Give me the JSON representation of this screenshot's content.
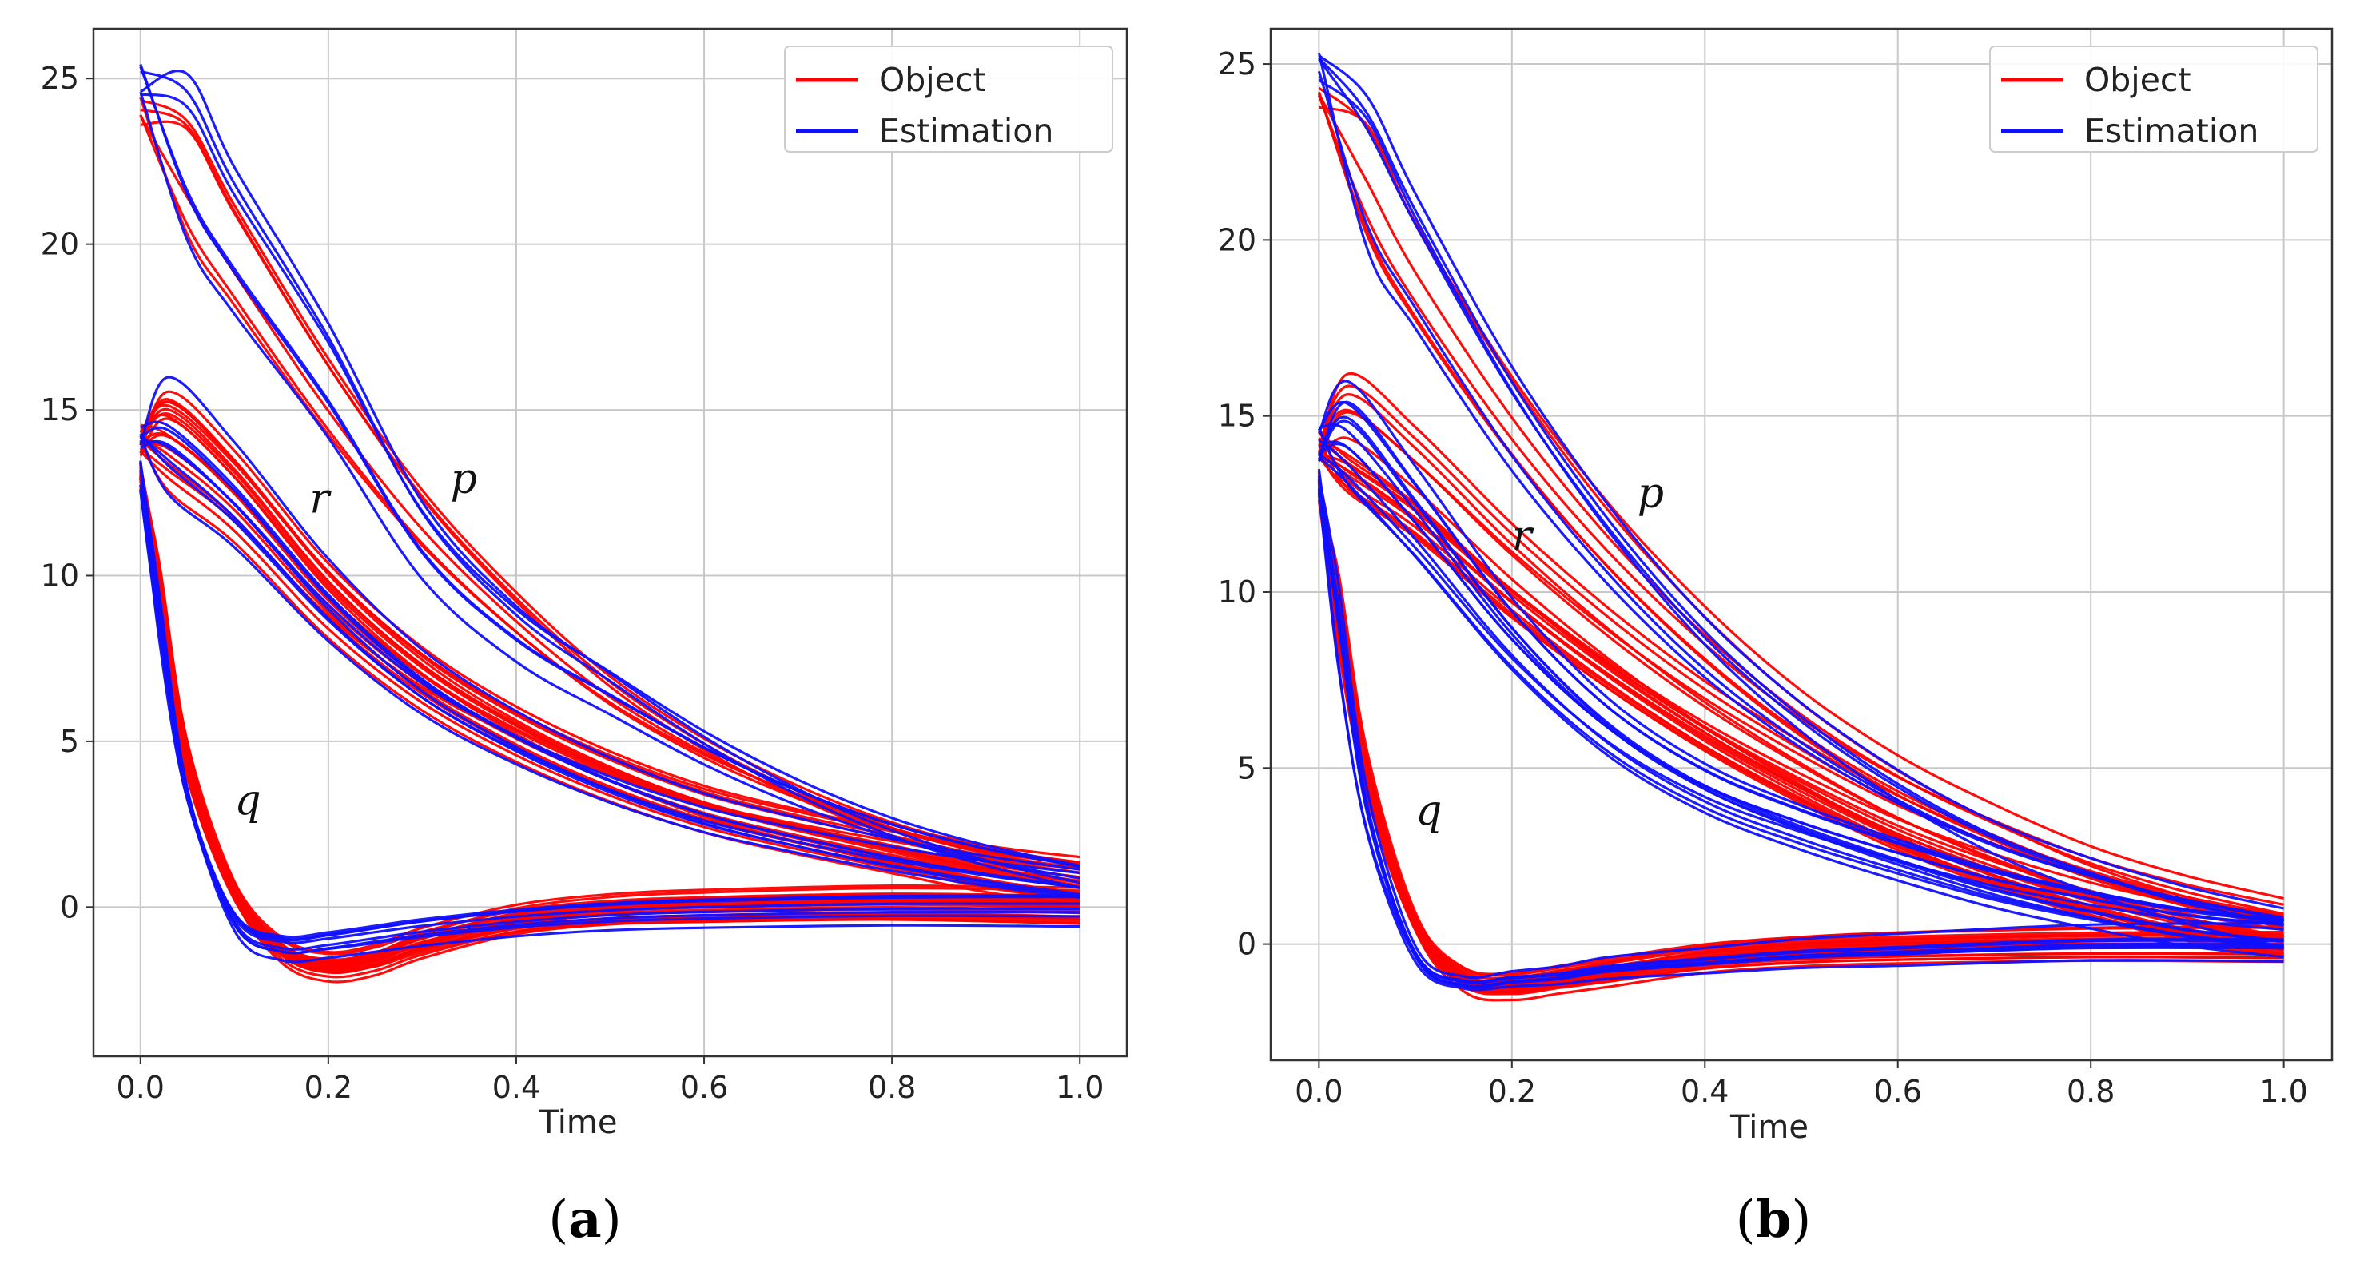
{
  "colors": {
    "object": "#ff0000",
    "estimation": "#1010ff"
  },
  "chart_data": [
    {
      "type": "line",
      "panel_label": "a",
      "xlabel": "Time",
      "ylabel": "",
      "xlim": [
        -0.05,
        1.05
      ],
      "ylim": [
        -4.5,
        26.5
      ],
      "xticks": [
        0.0,
        0.2,
        0.4,
        0.6,
        0.8,
        1.0
      ],
      "xtick_labels": [
        "0.0",
        "0.2",
        "0.4",
        "0.6",
        "0.8",
        "1.0"
      ],
      "yticks": [
        0,
        5,
        10,
        15,
        20,
        25
      ],
      "ytick_labels": [
        "0",
        "5",
        "10",
        "15",
        "20",
        "25"
      ],
      "grid": true,
      "legend": {
        "position": "top-right",
        "entries": [
          "Object",
          "Estimation"
        ]
      },
      "annotations": [
        {
          "text": "p",
          "x": 0.33,
          "y": 12.5
        },
        {
          "text": "r",
          "x": 0.18,
          "y": 11.9
        },
        {
          "text": "q",
          "x": 0.1,
          "y": 2.8
        }
      ],
      "series": [
        {
          "name": "Object",
          "group": "p",
          "color": "object",
          "count": 6,
          "x": [
            0,
            0.05,
            0.1,
            0.2,
            0.3,
            0.4,
            0.5,
            0.6,
            0.7,
            0.8,
            0.9,
            1.0
          ],
          "y": [
            24.0,
            21.5,
            19.2,
            15.0,
            11.4,
            8.6,
            6.3,
            4.6,
            3.3,
            2.3,
            1.6,
            1.2
          ]
        },
        {
          "name": "Estimation",
          "group": "p",
          "color": "estimation",
          "count": 6,
          "x": [
            0,
            0.05,
            0.1,
            0.2,
            0.3,
            0.4,
            0.5,
            0.6,
            0.7,
            0.8,
            0.9,
            1.0
          ],
          "y": [
            25.0,
            22.5,
            20.0,
            15.8,
            11.0,
            8.2,
            6.4,
            4.7,
            3.3,
            2.2,
            1.4,
            0.8
          ]
        },
        {
          "name": "Object",
          "group": "r",
          "color": "object",
          "count": 18,
          "x": [
            0,
            0.03,
            0.1,
            0.2,
            0.3,
            0.4,
            0.5,
            0.6,
            0.7,
            0.8,
            0.9,
            1.0
          ],
          "y": [
            14.1,
            14.3,
            12.6,
            9.4,
            7.0,
            5.3,
            4.0,
            3.0,
            2.3,
            1.7,
            1.1,
            0.7
          ]
        },
        {
          "name": "Estimation",
          "group": "r",
          "color": "estimation",
          "count": 8,
          "x": [
            0,
            0.03,
            0.1,
            0.2,
            0.3,
            0.4,
            0.5,
            0.6,
            0.7,
            0.8,
            0.9,
            1.0
          ],
          "y": [
            14.1,
            14.2,
            12.4,
            9.2,
            6.7,
            5.0,
            3.7,
            2.7,
            2.0,
            1.4,
            0.9,
            0.5
          ]
        },
        {
          "name": "Object",
          "group": "q",
          "color": "object",
          "count": 22,
          "x": [
            0,
            0.02,
            0.05,
            0.1,
            0.15,
            0.2,
            0.25,
            0.3,
            0.4,
            0.5,
            0.6,
            0.8,
            1.0
          ],
          "y": [
            13.0,
            9.5,
            4.5,
            0.5,
            -1.3,
            -1.8,
            -1.6,
            -1.1,
            -0.4,
            -0.1,
            0.0,
            0.1,
            0.0
          ]
        },
        {
          "name": "Estimation",
          "group": "q",
          "color": "estimation",
          "count": 8,
          "x": [
            0,
            0.02,
            0.05,
            0.1,
            0.15,
            0.2,
            0.25,
            0.3,
            0.4,
            0.5,
            0.6,
            0.8,
            1.0
          ],
          "y": [
            13.0,
            9.0,
            3.5,
            -0.4,
            -1.2,
            -1.1,
            -0.9,
            -0.7,
            -0.4,
            -0.2,
            -0.1,
            0.0,
            0.0
          ]
        }
      ]
    },
    {
      "type": "line",
      "panel_label": "b",
      "xlabel": "Time",
      "ylabel": "",
      "xlim": [
        -0.05,
        1.05
      ],
      "ylim": [
        -3.3,
        26.0
      ],
      "xticks": [
        0.0,
        0.2,
        0.4,
        0.6,
        0.8,
        1.0
      ],
      "xtick_labels": [
        "0.0",
        "0.2",
        "0.4",
        "0.6",
        "0.8",
        "1.0"
      ],
      "yticks": [
        0,
        5,
        10,
        15,
        20,
        25
      ],
      "ytick_labels": [
        "0",
        "5",
        "10",
        "15",
        "20",
        "25"
      ],
      "grid": true,
      "legend": {
        "position": "top-right",
        "entries": [
          "Object",
          "Estimation"
        ]
      },
      "annotations": [
        {
          "text": "p",
          "x": 0.33,
          "y": 12.4
        },
        {
          "text": "r",
          "x": 0.2,
          "y": 11.2
        },
        {
          "text": "q",
          "x": 0.1,
          "y": 3.4
        }
      ],
      "series": [
        {
          "name": "Object",
          "group": "p",
          "color": "object",
          "count": 6,
          "x": [
            0,
            0.05,
            0.1,
            0.2,
            0.3,
            0.4,
            0.5,
            0.6,
            0.7,
            0.8,
            0.9,
            1.0
          ],
          "y": [
            24.0,
            21.0,
            18.5,
            14.5,
            11.2,
            8.5,
            6.3,
            4.6,
            3.3,
            2.2,
            1.4,
            0.8
          ]
        },
        {
          "name": "Estimation",
          "group": "p",
          "color": "estimation",
          "count": 6,
          "x": [
            0,
            0.05,
            0.1,
            0.2,
            0.3,
            0.4,
            0.5,
            0.6,
            0.7,
            0.8,
            0.9,
            1.0
          ],
          "y": [
            25.0,
            22.2,
            19.6,
            15.0,
            11.3,
            8.3,
            6.0,
            4.2,
            2.8,
            1.8,
            1.0,
            0.4
          ]
        },
        {
          "name": "Object",
          "group": "r",
          "color": "object",
          "count": 18,
          "x": [
            0,
            0.03,
            0.1,
            0.2,
            0.3,
            0.4,
            0.5,
            0.6,
            0.7,
            0.8,
            0.9,
            1.0
          ],
          "y": [
            14.2,
            14.4,
            13.0,
            10.5,
            8.3,
            6.4,
            4.8,
            3.4,
            2.3,
            1.4,
            0.7,
            0.2
          ]
        },
        {
          "name": "Estimation",
          "group": "r",
          "color": "estimation",
          "count": 12,
          "x": [
            0,
            0.03,
            0.1,
            0.2,
            0.3,
            0.4,
            0.5,
            0.6,
            0.7,
            0.8,
            0.9,
            1.0
          ],
          "y": [
            14.2,
            14.2,
            12.0,
            8.6,
            6.0,
            4.3,
            3.2,
            2.3,
            1.5,
            0.9,
            0.4,
            0.1
          ]
        },
        {
          "name": "Object",
          "group": "q",
          "color": "object",
          "count": 20,
          "x": [
            0,
            0.02,
            0.05,
            0.1,
            0.15,
            0.2,
            0.25,
            0.3,
            0.4,
            0.5,
            0.6,
            0.8,
            1.0
          ],
          "y": [
            13.0,
            9.5,
            4.8,
            0.6,
            -1.0,
            -1.2,
            -1.0,
            -0.8,
            -0.4,
            -0.2,
            -0.1,
            0.0,
            0.0
          ]
        },
        {
          "name": "Estimation",
          "group": "q",
          "color": "estimation",
          "count": 8,
          "x": [
            0,
            0.02,
            0.05,
            0.1,
            0.15,
            0.2,
            0.25,
            0.3,
            0.4,
            0.5,
            0.6,
            0.8,
            1.0
          ],
          "y": [
            13.0,
            9.0,
            3.7,
            -0.3,
            -1.1,
            -1.0,
            -0.9,
            -0.7,
            -0.5,
            -0.3,
            -0.2,
            0.0,
            0.0
          ]
        }
      ]
    }
  ]
}
